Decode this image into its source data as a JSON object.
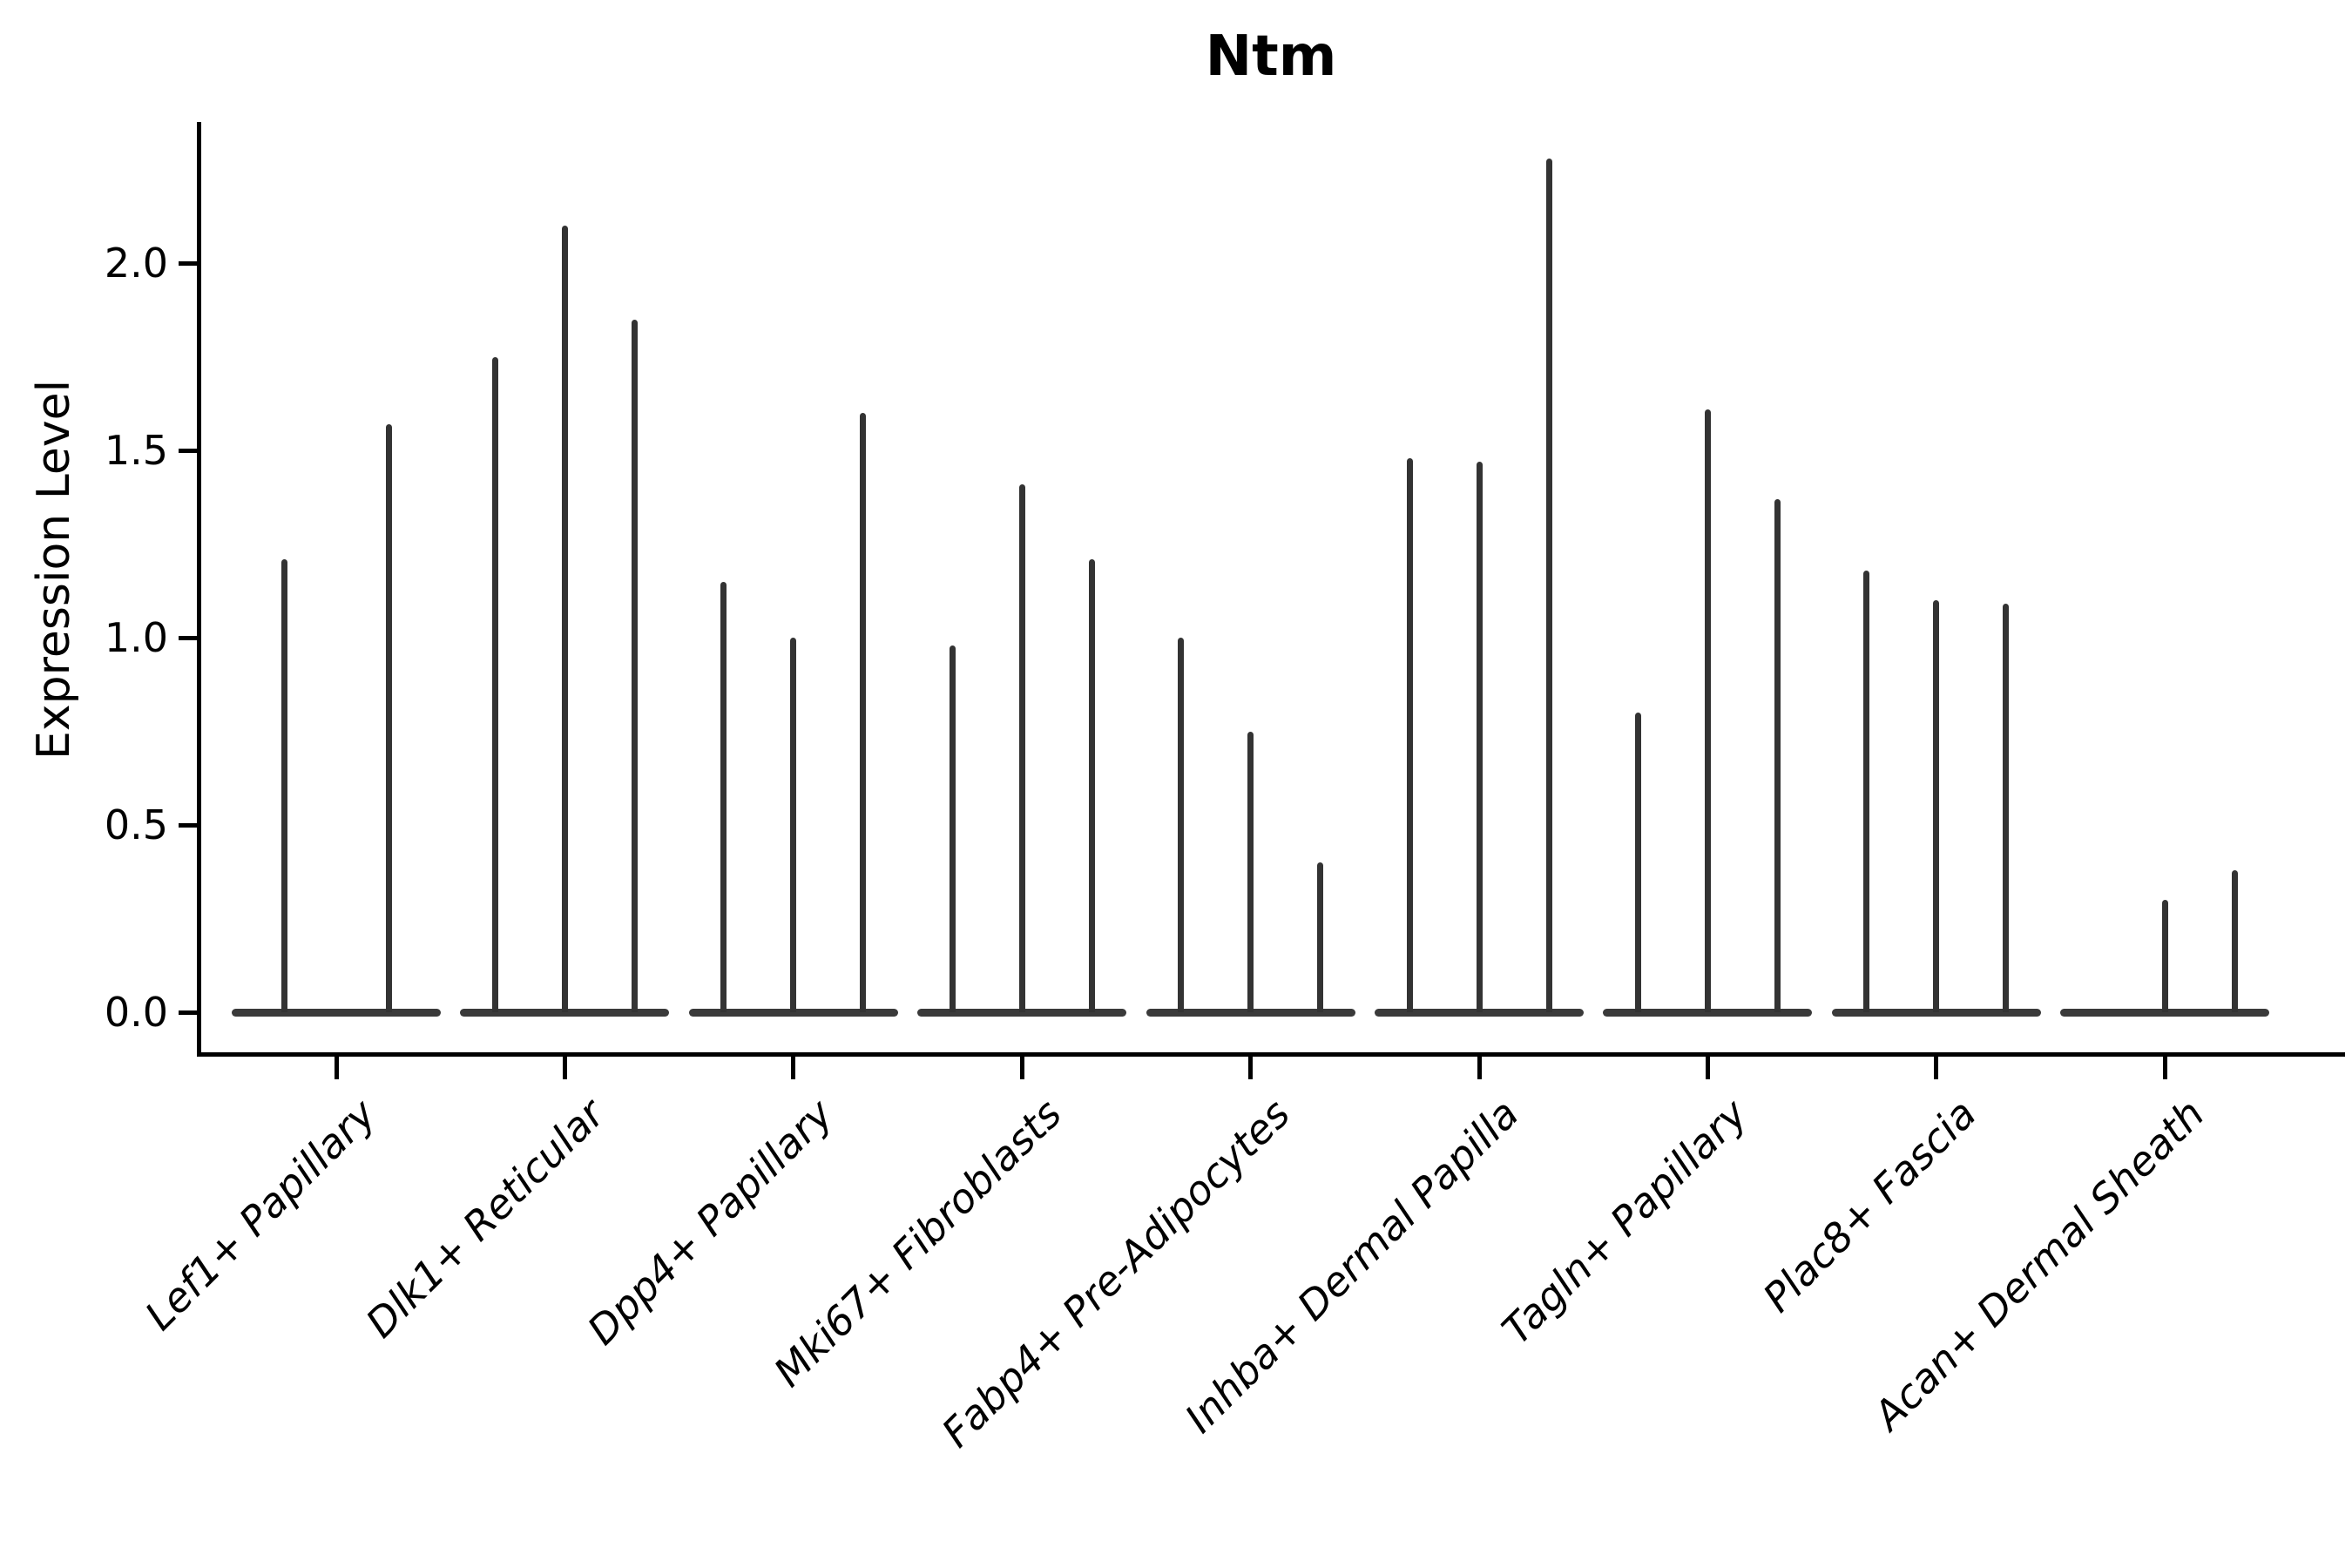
{
  "title": "Ntm",
  "y_axis": {
    "label": "Expression Level",
    "ticks": [
      "0.0",
      "0.5",
      "1.0",
      "1.5",
      "2.0"
    ],
    "tick_values": [
      0.0,
      0.5,
      1.0,
      1.5,
      2.0
    ]
  },
  "chart_data": {
    "type": "violin",
    "title": "Ntm",
    "xlabel": "",
    "ylabel": "Expression Level",
    "ylim": [
      -0.11,
      2.38
    ],
    "yticks": [
      0.0,
      0.5,
      1.0,
      1.5,
      2.0
    ],
    "grid": false,
    "legend": null,
    "style": "monochrome dark-gray violins; density collapsed flat at 0 with one thin vertical spike per violin reaching its maximum expression value; multiple violins per category",
    "categories": [
      "Lef1+ Papillary",
      "Dlk1+ Reticular",
      "Dpp4+ Papillary",
      "Mki67+ Fibroblasts",
      "Fabp4+ Pre-Adipocytes",
      "Inhba+ Dermal Papilla",
      "Tagln+ Papillary",
      "Plac8+ Fascia",
      "Acan+ Dermal Sheath"
    ],
    "series": [
      {
        "category": "Lef1+ Papillary",
        "spike_values": [
          1.21,
          1.57
        ]
      },
      {
        "category": "Dlk1+ Reticular",
        "spike_values": [
          1.75,
          2.1,
          1.85
        ]
      },
      {
        "category": "Dpp4+ Papillary",
        "spike_values": [
          1.15,
          1.0,
          1.6
        ]
      },
      {
        "category": "Mki67+ Fibroblasts",
        "spike_values": [
          0.98,
          1.41,
          1.21
        ]
      },
      {
        "category": "Fabp4+ Pre-Adipocytes",
        "spike_values": [
          1.0,
          0.75,
          0.4
        ]
      },
      {
        "category": "Inhba+ Dermal Papilla",
        "spike_values": [
          1.48,
          1.47,
          2.28
        ]
      },
      {
        "category": "Tagln+ Papillary",
        "spike_values": [
          0.8,
          1.61,
          1.37
        ]
      },
      {
        "category": "Plac8+ Fascia",
        "spike_values": [
          1.18,
          1.1,
          1.09
        ]
      },
      {
        "category": "Acan+ Dermal Sheath",
        "spike_values": [
          0.0,
          0.3,
          0.38
        ]
      }
    ]
  },
  "colors": {
    "axis": "#000000",
    "violin": "#333333",
    "background": "#ffffff"
  }
}
